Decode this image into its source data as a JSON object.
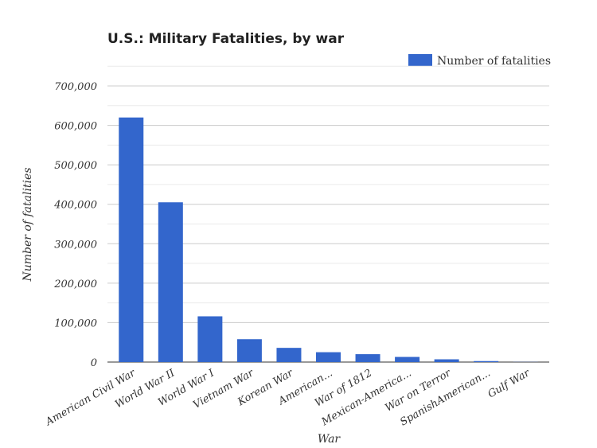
{
  "chart_data": {
    "type": "bar",
    "title": "U.S.: Military Fatalities, by war",
    "xlabel": "War",
    "ylabel": "Number of fatalities",
    "legend": {
      "position": "top-right",
      "entries": [
        "Number of fatalities"
      ]
    },
    "categories": [
      "American Civil War",
      "World War II",
      "World War I",
      "Vietnam War",
      "Korean War",
      "American...",
      "War of 1812",
      "Mexican-America...",
      "War on Terror",
      "SpanishAmerican...",
      "Gulf War"
    ],
    "series": [
      {
        "name": "Number of fatalities",
        "color": "#3366cc",
        "values": [
          620000,
          405000,
          116000,
          58000,
          36000,
          25000,
          20000,
          13000,
          7000,
          2500,
          300
        ]
      }
    ],
    "ylim": [
      0,
      700000
    ],
    "yticks": [
      "0",
      "100,000",
      "200,000",
      "300,000",
      "400,000",
      "500,000",
      "600,000",
      "700,000"
    ],
    "grid": true
  }
}
